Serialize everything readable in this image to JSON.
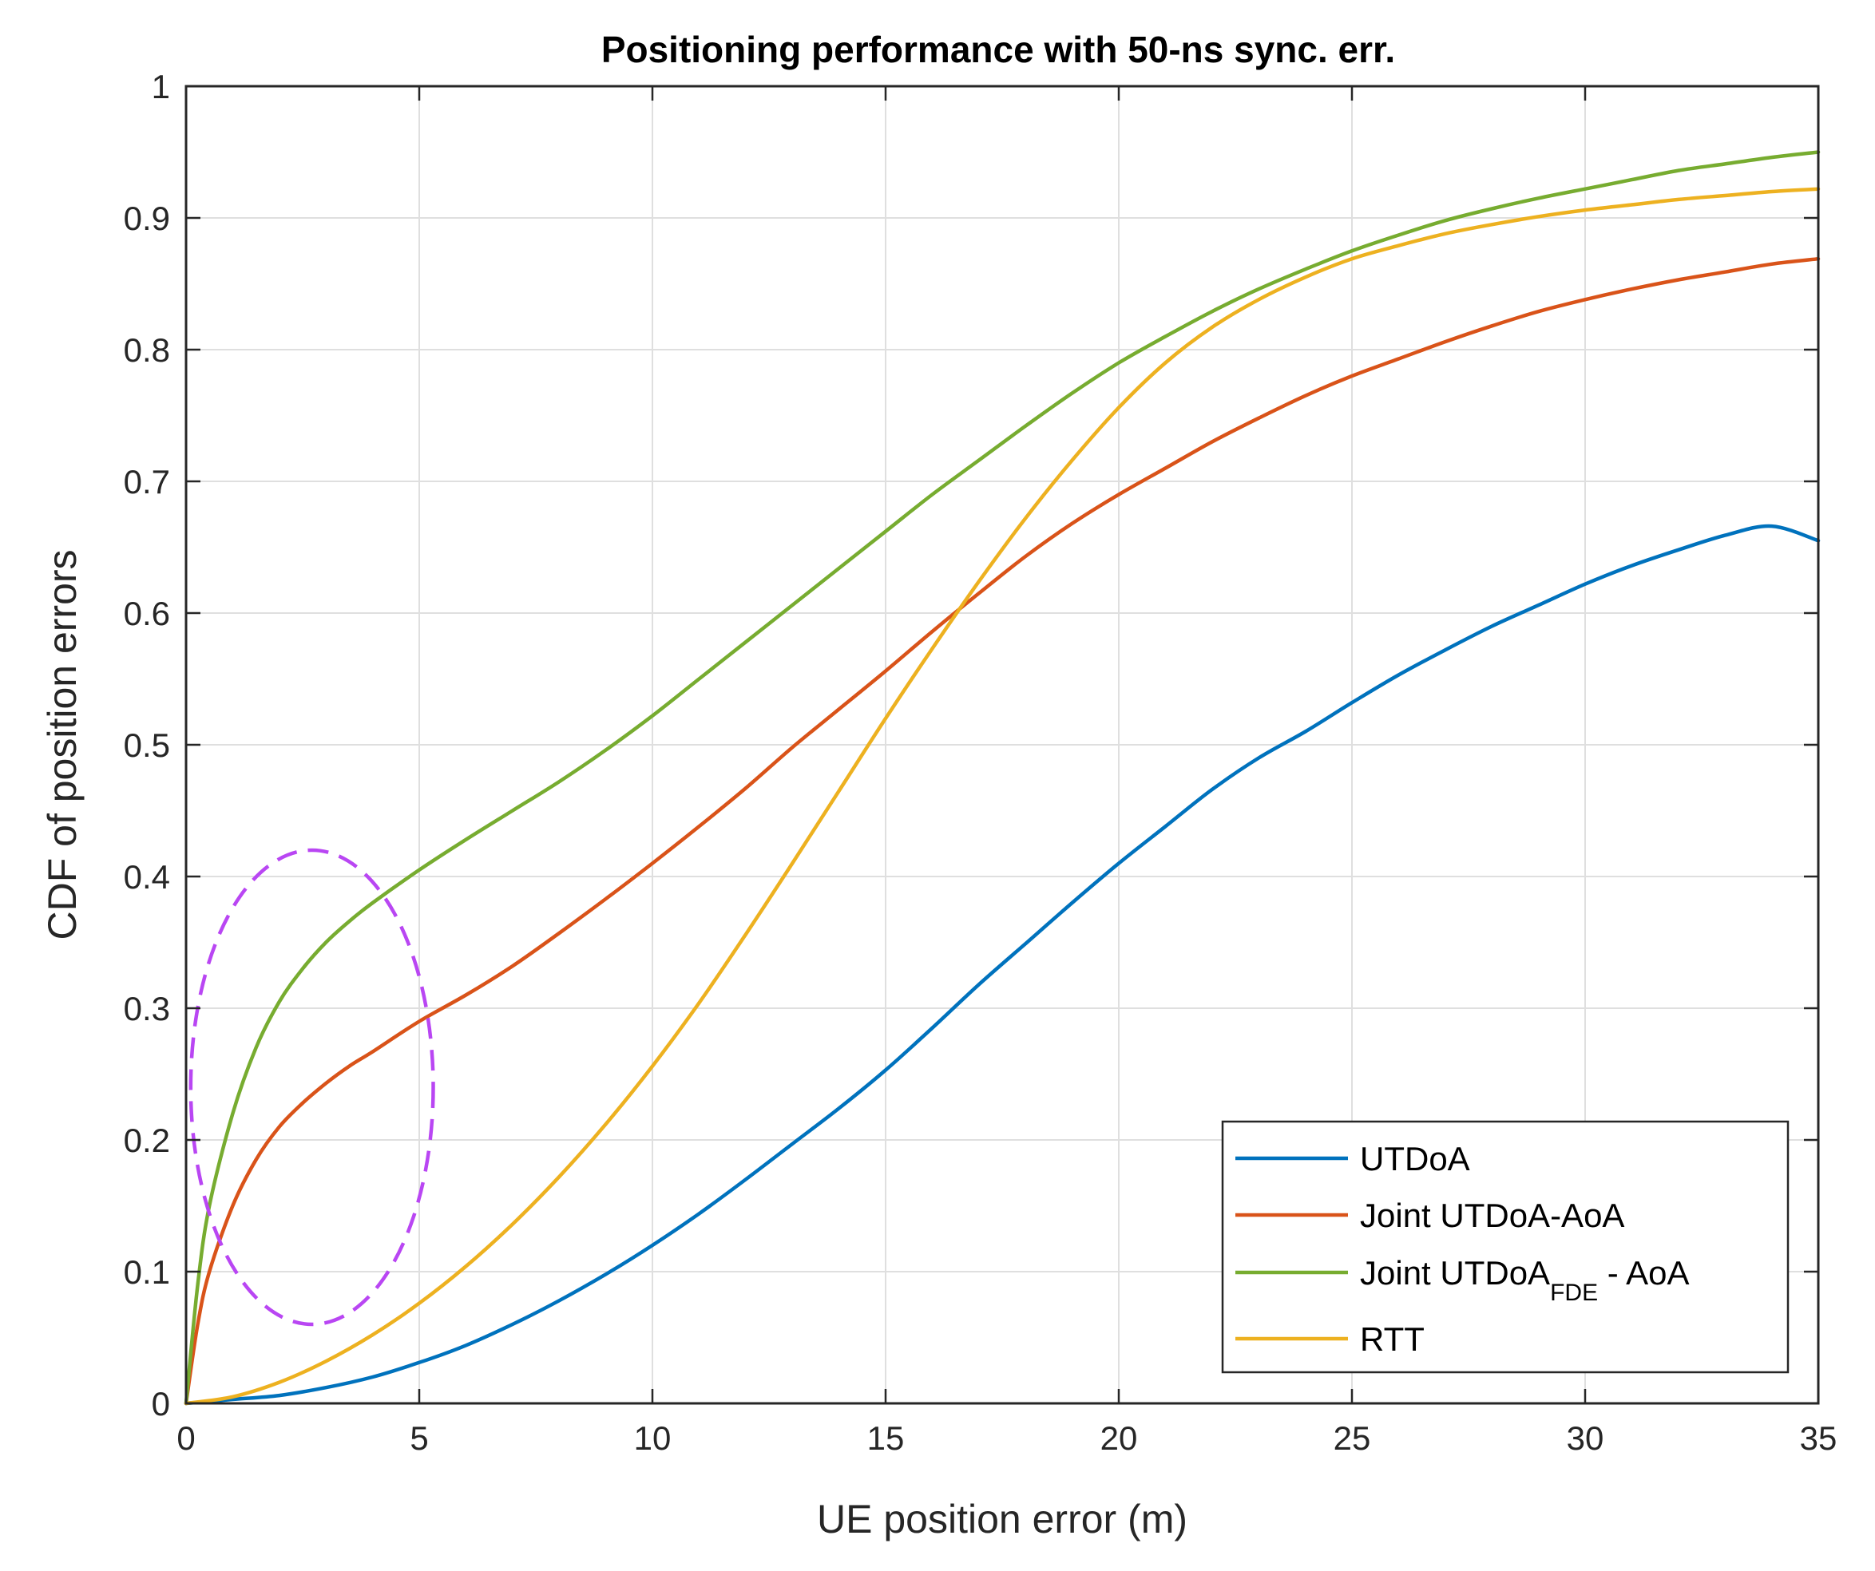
{
  "chart_data": {
    "type": "line",
    "title": "Positioning performance with 50-ns sync. err.",
    "xlabel": "UE position error (m)",
    "ylabel": "CDF of position errors",
    "xlim": [
      0,
      35
    ],
    "ylim": [
      0,
      1
    ],
    "xticks": [
      0,
      5,
      10,
      15,
      20,
      25,
      30,
      35
    ],
    "xtick_labels": [
      "0",
      "5",
      "10",
      "15",
      "20",
      "25",
      "30",
      "35"
    ],
    "yticks": [
      0,
      0.1,
      0.2,
      0.3,
      0.4,
      0.5,
      0.6,
      0.7,
      0.8,
      0.9,
      1
    ],
    "ytick_labels": [
      "0",
      "0.1",
      "0.2",
      "0.3",
      "0.4",
      "0.5",
      "0.6",
      "0.7",
      "0.8",
      "0.9",
      "1"
    ],
    "grid": true,
    "legend_position": "bottom-right",
    "series": [
      {
        "name": "UTDoA",
        "color": "#0072BD",
        "x": [
          0,
          1,
          2,
          3,
          4,
          5,
          6,
          7,
          8,
          9,
          10,
          11,
          12,
          13,
          14,
          15,
          16,
          17,
          18,
          19,
          20,
          21,
          22,
          23,
          24,
          25,
          26,
          27,
          28,
          29,
          30,
          31,
          32,
          33,
          34,
          35
        ],
        "y": [
          0,
          0.003,
          0.006,
          0.012,
          0.02,
          0.031,
          0.044,
          0.06,
          0.078,
          0.098,
          0.12,
          0.144,
          0.17,
          0.197,
          0.224,
          0.253,
          0.285,
          0.318,
          0.349,
          0.38,
          0.41,
          0.438,
          0.466,
          0.49,
          0.51,
          0.532,
          0.553,
          0.572,
          0.59,
          0.606,
          0.622,
          0.636,
          0.648,
          0.659,
          0.666,
          0.655
        ]
      },
      {
        "name": "Joint UTDoA-AoA",
        "color": "#D95319",
        "x": [
          0,
          0.25,
          0.5,
          1,
          1.5,
          2,
          2.5,
          3,
          3.5,
          4,
          5,
          6,
          7,
          8,
          9,
          10,
          11,
          12,
          13,
          14,
          15,
          16,
          17,
          18,
          19,
          20,
          21,
          22,
          23,
          24,
          25,
          26,
          27,
          28,
          29,
          30,
          31,
          32,
          33,
          34,
          35
        ],
        "y": [
          0,
          0.06,
          0.1,
          0.15,
          0.185,
          0.21,
          0.228,
          0.243,
          0.256,
          0.267,
          0.29,
          0.31,
          0.332,
          0.357,
          0.383,
          0.41,
          0.438,
          0.467,
          0.498,
          0.527,
          0.556,
          0.586,
          0.615,
          0.643,
          0.668,
          0.69,
          0.71,
          0.73,
          0.748,
          0.765,
          0.78,
          0.793,
          0.806,
          0.818,
          0.829,
          0.838,
          0.846,
          0.853,
          0.859,
          0.865,
          0.869
        ]
      },
      {
        "name": "Joint UTDoA_FDE - AoA",
        "name_main": "Joint UTDoA",
        "name_sub": "FDE",
        "name_tail": " - AoA",
        "color": "#77AC30",
        "x": [
          0,
          0.25,
          0.5,
          1,
          1.5,
          2,
          2.5,
          3,
          3.5,
          4,
          5,
          6,
          7,
          8,
          9,
          10,
          11,
          12,
          13,
          14,
          15,
          16,
          17,
          18,
          19,
          20,
          21,
          22,
          23,
          24,
          25,
          26,
          27,
          28,
          29,
          30,
          31,
          32,
          33,
          34,
          35
        ],
        "y": [
          0,
          0.09,
          0.15,
          0.22,
          0.27,
          0.305,
          0.33,
          0.35,
          0.366,
          0.38,
          0.405,
          0.428,
          0.45,
          0.472,
          0.496,
          0.522,
          0.55,
          0.578,
          0.606,
          0.634,
          0.662,
          0.69,
          0.716,
          0.742,
          0.767,
          0.79,
          0.81,
          0.829,
          0.846,
          0.861,
          0.875,
          0.887,
          0.898,
          0.907,
          0.915,
          0.922,
          0.929,
          0.936,
          0.941,
          0.946,
          0.95
        ]
      },
      {
        "name": "RTT",
        "color": "#EDB120",
        "x": [
          0,
          1,
          2,
          3,
          4,
          5,
          6,
          7,
          8,
          9,
          10,
          11,
          12,
          13,
          14,
          15,
          16,
          17,
          18,
          19,
          20,
          21,
          22,
          23,
          24,
          25,
          26,
          27,
          28,
          29,
          30,
          31,
          32,
          33,
          34,
          35
        ],
        "y": [
          0,
          0.005,
          0.016,
          0.032,
          0.052,
          0.076,
          0.104,
          0.136,
          0.172,
          0.212,
          0.256,
          0.304,
          0.356,
          0.41,
          0.465,
          0.52,
          0.573,
          0.624,
          0.672,
          0.716,
          0.756,
          0.79,
          0.817,
          0.838,
          0.855,
          0.869,
          0.879,
          0.888,
          0.895,
          0.901,
          0.906,
          0.91,
          0.914,
          0.917,
          0.92,
          0.922
        ]
      }
    ],
    "annotations": [
      {
        "type": "dashed-ellipse",
        "color": "#B946F3",
        "center": [
          2.7,
          0.24
        ],
        "x_radius": 2.6,
        "y_radius": 0.18
      }
    ]
  }
}
